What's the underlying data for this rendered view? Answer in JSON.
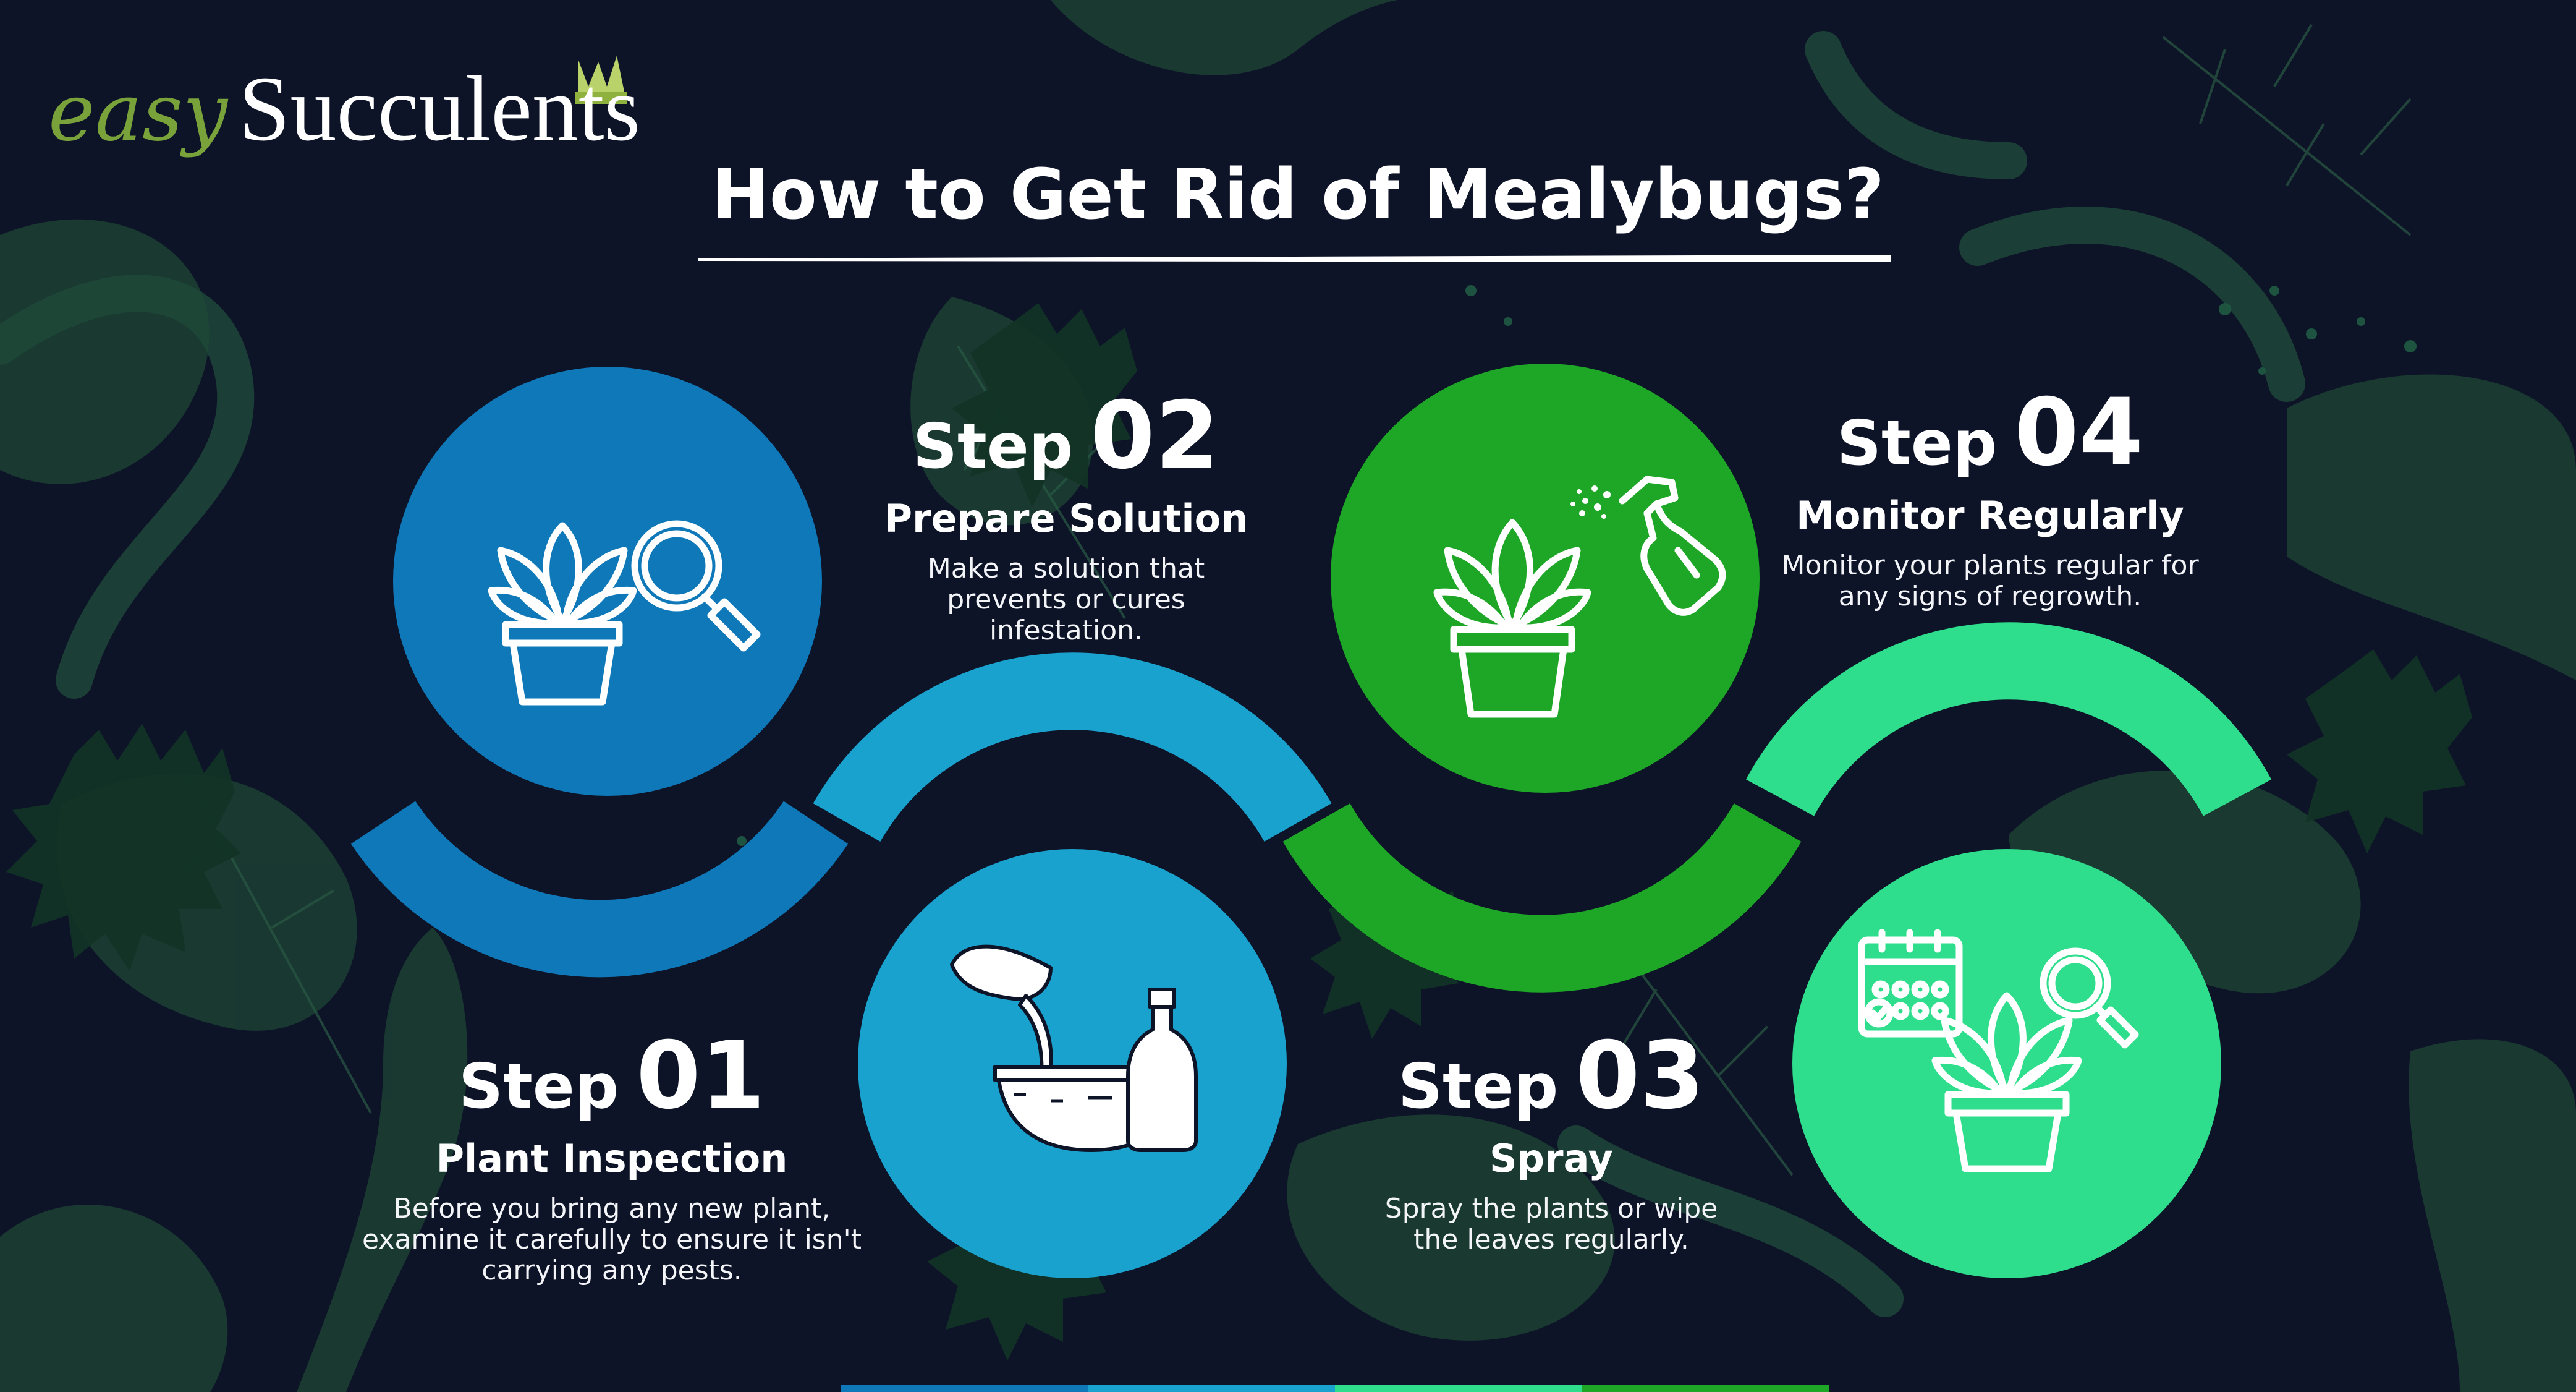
{
  "brand": {
    "prefix": "easy",
    "name": "Succulents"
  },
  "title": "How to Get Rid of Mealybugs?",
  "steps": [
    {
      "label": "Step",
      "number": "01",
      "name": "Plant Inspection",
      "description": "Before you bring  any new plant, examine it carefully to ensure it isn't carrying any pests.",
      "color": "#0e78b8",
      "icon": "plant-magnifier-icon"
    },
    {
      "label": "Step",
      "number": "02",
      "name": "Prepare Solution",
      "description": "Make a solution that prevents or cures infestation.",
      "color": "#1aa2cf",
      "icon": "bowl-soap-bottle-icon"
    },
    {
      "label": "Step",
      "number": "03",
      "name": "Spray",
      "description": "Spray the plants or wipe the leaves regularly.",
      "color": "#1ea727",
      "icon": "plant-spray-bottle-icon"
    },
    {
      "label": "Step",
      "number": "04",
      "name": "Monitor Regularly",
      "description": "Monitor your plants regular for any signs of regrowth.",
      "color": "#2ede8c",
      "icon": "calendar-plant-magnifier-icon"
    }
  ],
  "colors": {
    "background": "#0e1428",
    "leaf": "#1c4a35",
    "logo_green": "#7aa23a"
  }
}
